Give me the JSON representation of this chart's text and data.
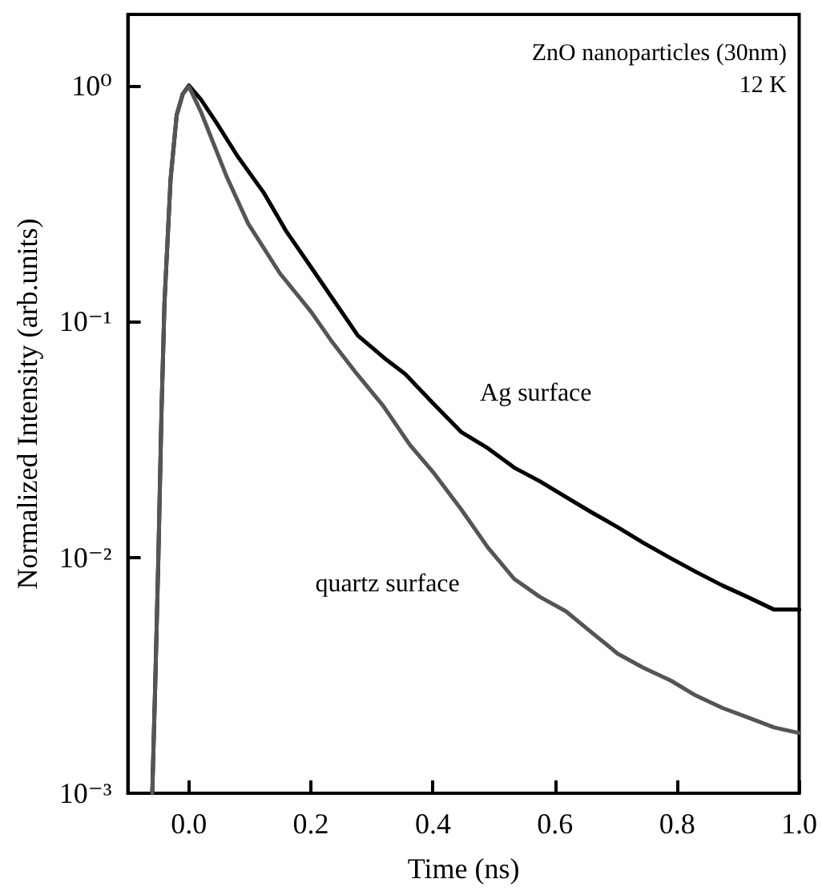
{
  "chart_data": {
    "type": "line",
    "xlabel": "Time (ns)",
    "ylabel": "Normalized Intensity (arb.units)",
    "annotations": [
      "ZnO nanoparticles (30nm)",
      "12 K"
    ],
    "log": "y",
    "grid": false,
    "legend": false,
    "marker": "none",
    "line_style": "solid",
    "xlim": [
      -0.1,
      1.0
    ],
    "xticks": [
      {
        "value": 0,
        "label": "0.0"
      },
      {
        "value": 0.2,
        "label": "0.2"
      },
      {
        "value": 0.4,
        "label": "0.4"
      },
      {
        "value": 0.6,
        "label": "0.6"
      },
      {
        "value": 0.8,
        "label": "0.8"
      },
      {
        "value": 1,
        "label": "1.0"
      }
    ],
    "ylim": [
      0.001,
      2
    ],
    "yticks": [
      {
        "value": 0.001,
        "label": "10⁻³"
      },
      {
        "value": 0.01,
        "label": "10⁻²"
      },
      {
        "value": 0.1,
        "label": "10⁻¹"
      },
      {
        "value": 1,
        "label": "10⁰"
      }
    ],
    "series": [
      {
        "name": "Ag surface",
        "color": "#000000",
        "x": [
          -0.06,
          -0.055,
          -0.05,
          -0.045,
          -0.04,
          -0.03,
          -0.02,
          -0.01,
          0,
          0.02,
          0.046,
          0.08,
          0.123,
          0.16,
          0.2,
          0.24,
          0.277,
          0.32,
          0.354,
          0.4,
          0.446,
          0.49,
          0.533,
          0.575,
          0.618,
          0.66,
          0.703,
          0.745,
          0.79,
          0.83,
          0.874,
          0.915,
          0.959,
          1.0
        ],
        "values": [
          0.001,
          0.003,
          0.01,
          0.04,
          0.12,
          0.4,
          0.75,
          0.92,
          1.0,
          0.87,
          0.69,
          0.5,
          0.35,
          0.24,
          0.17,
          0.12,
          0.087,
          0.07,
          0.06,
          0.045,
          0.034,
          0.029,
          0.024,
          0.021,
          0.018,
          0.0155,
          0.0134,
          0.0115,
          0.0099,
          0.0087,
          0.0076,
          0.0068,
          0.006,
          0.006
        ]
      },
      {
        "name": "quartz surface",
        "color": "#555555",
        "x": [
          -0.06,
          -0.055,
          -0.05,
          -0.045,
          -0.04,
          -0.03,
          -0.02,
          -0.01,
          0,
          0.02,
          0.062,
          0.097,
          0.149,
          0.2,
          0.233,
          0.275,
          0.318,
          0.362,
          0.4,
          0.446,
          0.49,
          0.533,
          0.575,
          0.618,
          0.66,
          0.703,
          0.745,
          0.79,
          0.83,
          0.874,
          0.915,
          0.959,
          1.0
        ],
        "values": [
          0.001,
          0.003,
          0.01,
          0.04,
          0.12,
          0.4,
          0.75,
          0.92,
          0.99,
          0.77,
          0.41,
          0.26,
          0.16,
          0.11,
          0.083,
          0.06,
          0.044,
          0.03,
          0.023,
          0.016,
          0.011,
          0.0081,
          0.0068,
          0.0059,
          0.0048,
          0.0039,
          0.0034,
          0.003,
          0.0026,
          0.0023,
          0.0021,
          0.0019,
          0.0018
        ]
      }
    ]
  }
}
